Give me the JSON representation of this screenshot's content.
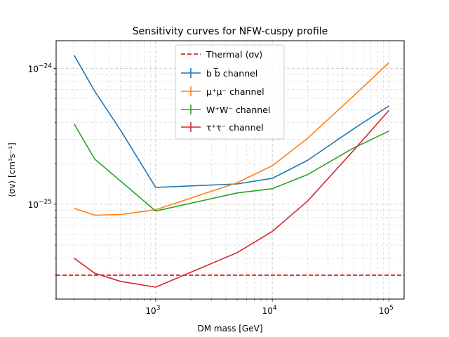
{
  "chart_data": {
    "type": "line",
    "title": "Sensitivity curves for NFW-cuspy profile",
    "xlabel": "DM mass [GeV]",
    "ylabel": "⟨σv⟩ [cm³s⁻¹]",
    "x_scale": "log",
    "y_scale": "log",
    "xlim": [
      140,
      135000
    ],
    "ylim": [
      2e-26,
      1.6e-24
    ],
    "x_ticks": [
      {
        "value": 1000,
        "base": "10",
        "exp": "3"
      },
      {
        "value": 10000,
        "base": "10",
        "exp": "4"
      },
      {
        "value": 100000,
        "base": "10",
        "exp": "5"
      }
    ],
    "y_ticks": [
      {
        "value": 1e-25,
        "base": "10",
        "exp": "−25"
      },
      {
        "value": 1e-24,
        "base": "10",
        "exp": "−24"
      }
    ],
    "grid": true,
    "legend_position": "upper center",
    "thermal_line": {
      "name": "Thermal ⟨σv⟩",
      "value": 3e-26,
      "color": "#d62728"
    },
    "x": [
      200,
      300,
      500,
      1000,
      5000,
      10000,
      20000,
      50000,
      100000
    ],
    "series": [
      {
        "name": "b b̅ channel",
        "color": "#1f77b4",
        "values": [
          1.25e-24,
          6.8e-25,
          3.5e-25,
          1.33e-25,
          1.41e-25,
          1.55e-25,
          2.1e-25,
          3.6e-25,
          5.3e-25
        ]
      },
      {
        "name": "μ⁺μ⁻ channel",
        "color": "#ff7f0e",
        "values": [
          9.3e-26,
          8.3e-26,
          8.4e-26,
          9.1e-26,
          1.44e-25,
          1.92e-25,
          3.05e-25,
          6.3e-25,
          1.1e-24
        ]
      },
      {
        "name": "W⁺W⁻ channel",
        "color": "#2ca02c",
        "values": [
          3.9e-25,
          2.15e-25,
          1.48e-25,
          8.9e-26,
          1.21e-25,
          1.3e-25,
          1.65e-25,
          2.6e-25,
          3.45e-25
        ]
      },
      {
        "name": "τ⁺τ⁻ channel",
        "color": "#d62728",
        "values": [
          4e-26,
          3.1e-26,
          2.7e-26,
          2.45e-26,
          4.4e-26,
          6.3e-26,
          1.05e-25,
          2.5e-25,
          4.9e-25
        ]
      }
    ]
  }
}
